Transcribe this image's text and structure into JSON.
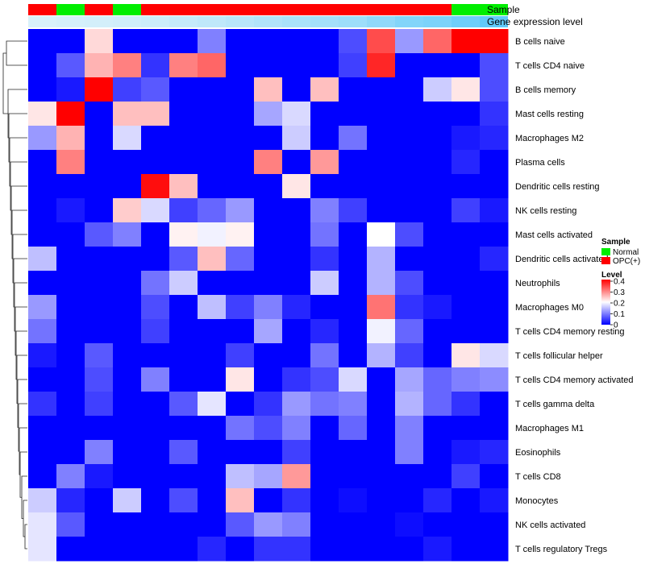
{
  "chart_data": {
    "type": "heatmap",
    "annotation_labels": {
      "sample": "Sample",
      "gene_expression": "Gene expression level"
    },
    "legend": {
      "sample_title": "Sample",
      "sample_entries": [
        {
          "label": "Normal",
          "color": "#00ee00"
        },
        {
          "label": "OPC(+)",
          "color": "#ff0000"
        }
      ],
      "level_title": "Level",
      "level_ticks": [
        "0.4",
        "0.3",
        "0.2",
        "0.1",
        "0"
      ],
      "level_range": [
        0,
        0.4
      ]
    },
    "colors": {
      "low": "#0000ff",
      "mid": "#ffffff",
      "high": "#ff0000",
      "normal": "#00ee00",
      "opc": "#ff0000",
      "gene_low": "#e0f3fa",
      "gene_high": "#5ac8fa"
    },
    "columns": {
      "sample": [
        "OPC(+)",
        "Normal",
        "OPC(+)",
        "Normal",
        "OPC(+)",
        "OPC(+)",
        "OPC(+)",
        "OPC(+)",
        "OPC(+)",
        "OPC(+)",
        "OPC(+)",
        "OPC(+)",
        "OPC(+)",
        "OPC(+)",
        "OPC(+)",
        "Normal",
        "Normal"
      ],
      "gene_expression_level": [
        0.05,
        0.08,
        0.1,
        0.12,
        0.15,
        0.2,
        0.25,
        0.3,
        0.35,
        0.4,
        0.45,
        0.5,
        0.6,
        0.7,
        0.75,
        0.85,
        0.95
      ]
    },
    "rows": [
      "B cells naive",
      "T cells CD4 naive",
      "B cells memory",
      "Mast cells resting",
      "Macrophages M2",
      "Plasma cells",
      "Dendritic cells resting",
      "NK cells resting",
      "Mast cells activated",
      "Dendritic cells activated",
      "Neutrophils",
      "Macrophages M0",
      "T cells CD4 memory resting",
      "T cells follicular helper",
      "T cells CD4 memory activated",
      "T cells gamma delta",
      "Macrophages M1",
      "Eosinophils",
      "T cells CD8",
      "Monocytes",
      "NK cells activated",
      "T cells regulatory  Tregs"
    ],
    "values": [
      [
        0,
        0,
        0.23,
        0,
        0,
        0,
        0.1,
        0,
        0,
        0,
        0,
        0.06,
        0.34,
        0.12,
        0.32,
        0.4,
        0.4
      ],
      [
        0,
        0.07,
        0.26,
        0.3,
        0.04,
        0.3,
        0.32,
        0,
        0,
        0,
        0,
        0.05,
        0.37,
        0,
        0,
        0,
        0.06
      ],
      [
        0,
        0.02,
        0.4,
        0.05,
        0.07,
        0,
        0,
        0,
        0.25,
        0,
        0.25,
        0,
        0,
        0,
        0.16,
        0.22,
        0.06
      ],
      [
        0.22,
        0.4,
        0,
        0.25,
        0.25,
        0,
        0,
        0,
        0.13,
        0.17,
        0,
        0,
        0,
        0,
        0,
        0,
        0.04
      ],
      [
        0.12,
        0.26,
        0,
        0.17,
        0,
        0,
        0,
        0,
        0,
        0.16,
        0,
        0.09,
        0,
        0,
        0,
        0.02,
        0.03
      ],
      [
        0,
        0.3,
        0,
        0,
        0,
        0,
        0,
        0,
        0.3,
        0,
        0.28,
        0,
        0,
        0,
        0,
        0.03,
        0
      ],
      [
        0,
        0,
        0,
        0,
        0.39,
        0.25,
        0,
        0,
        0,
        0.22,
        0,
        0,
        0,
        0,
        0,
        0,
        0
      ],
      [
        0,
        0.02,
        0,
        0.24,
        0.17,
        0.05,
        0.08,
        0.12,
        0,
        0,
        0.1,
        0.05,
        0,
        0,
        0,
        0.05,
        0.02
      ],
      [
        0,
        0,
        0.07,
        0.1,
        0,
        0.21,
        0.19,
        0.21,
        0,
        0,
        0.09,
        0,
        0.2,
        0.06,
        0,
        0,
        0
      ],
      [
        0.15,
        0,
        0,
        0,
        0,
        0.07,
        0.25,
        0.08,
        0,
        0,
        0.04,
        0,
        0.14,
        0,
        0,
        0,
        0.03
      ],
      [
        0,
        0,
        0,
        0,
        0.09,
        0.16,
        0,
        0,
        0,
        0,
        0.16,
        0,
        0.14,
        0.06,
        0,
        0,
        0
      ],
      [
        0.12,
        0,
        0,
        0,
        0.06,
        0,
        0.15,
        0.05,
        0.1,
        0.03,
        0,
        0,
        0.31,
        0.04,
        0.02,
        0,
        0
      ],
      [
        0.09,
        0,
        0,
        0,
        0.05,
        0,
        0,
        0,
        0.13,
        0,
        0.03,
        0,
        0.19,
        0.08,
        0,
        0,
        0
      ],
      [
        0.02,
        0,
        0.07,
        0,
        0,
        0,
        0,
        0.05,
        0,
        0,
        0.09,
        0,
        0.14,
        0.05,
        0,
        0.22,
        0.17
      ],
      [
        0,
        0,
        0.06,
        0,
        0.1,
        0,
        0,
        0.22,
        0,
        0.04,
        0.06,
        0.17,
        0,
        0.13,
        0.08,
        0.1,
        0.11
      ],
      [
        0.04,
        0,
        0.05,
        0,
        0,
        0.07,
        0.18,
        0,
        0.04,
        0.12,
        0.09,
        0.1,
        0,
        0.14,
        0.08,
        0.04,
        0
      ],
      [
        0,
        0,
        0,
        0,
        0,
        0,
        0,
        0.09,
        0.06,
        0.1,
        0,
        0.08,
        0,
        0.1,
        0,
        0,
        0
      ],
      [
        0,
        0,
        0.1,
        0,
        0,
        0.07,
        0,
        0,
        0,
        0.05,
        0,
        0,
        0,
        0.1,
        0,
        0.02,
        0.03
      ],
      [
        0,
        0.1,
        0.02,
        0,
        0,
        0,
        0,
        0.15,
        0.13,
        0.28,
        0,
        0,
        0,
        0,
        0,
        0.05,
        0
      ],
      [
        0.16,
        0.03,
        0,
        0.16,
        0,
        0.06,
        0,
        0.25,
        0,
        0.04,
        0,
        0.01,
        0,
        0,
        0.03,
        0,
        0.02
      ],
      [
        0.18,
        0.07,
        0,
        0,
        0,
        0,
        0,
        0.07,
        0.12,
        0.1,
        0,
        0,
        0,
        0.01,
        0,
        0,
        0
      ],
      [
        0.18,
        0,
        0,
        0,
        0,
        0,
        0.03,
        0,
        0.04,
        0.04,
        0,
        0,
        0,
        0,
        0.02,
        0,
        0
      ]
    ]
  }
}
